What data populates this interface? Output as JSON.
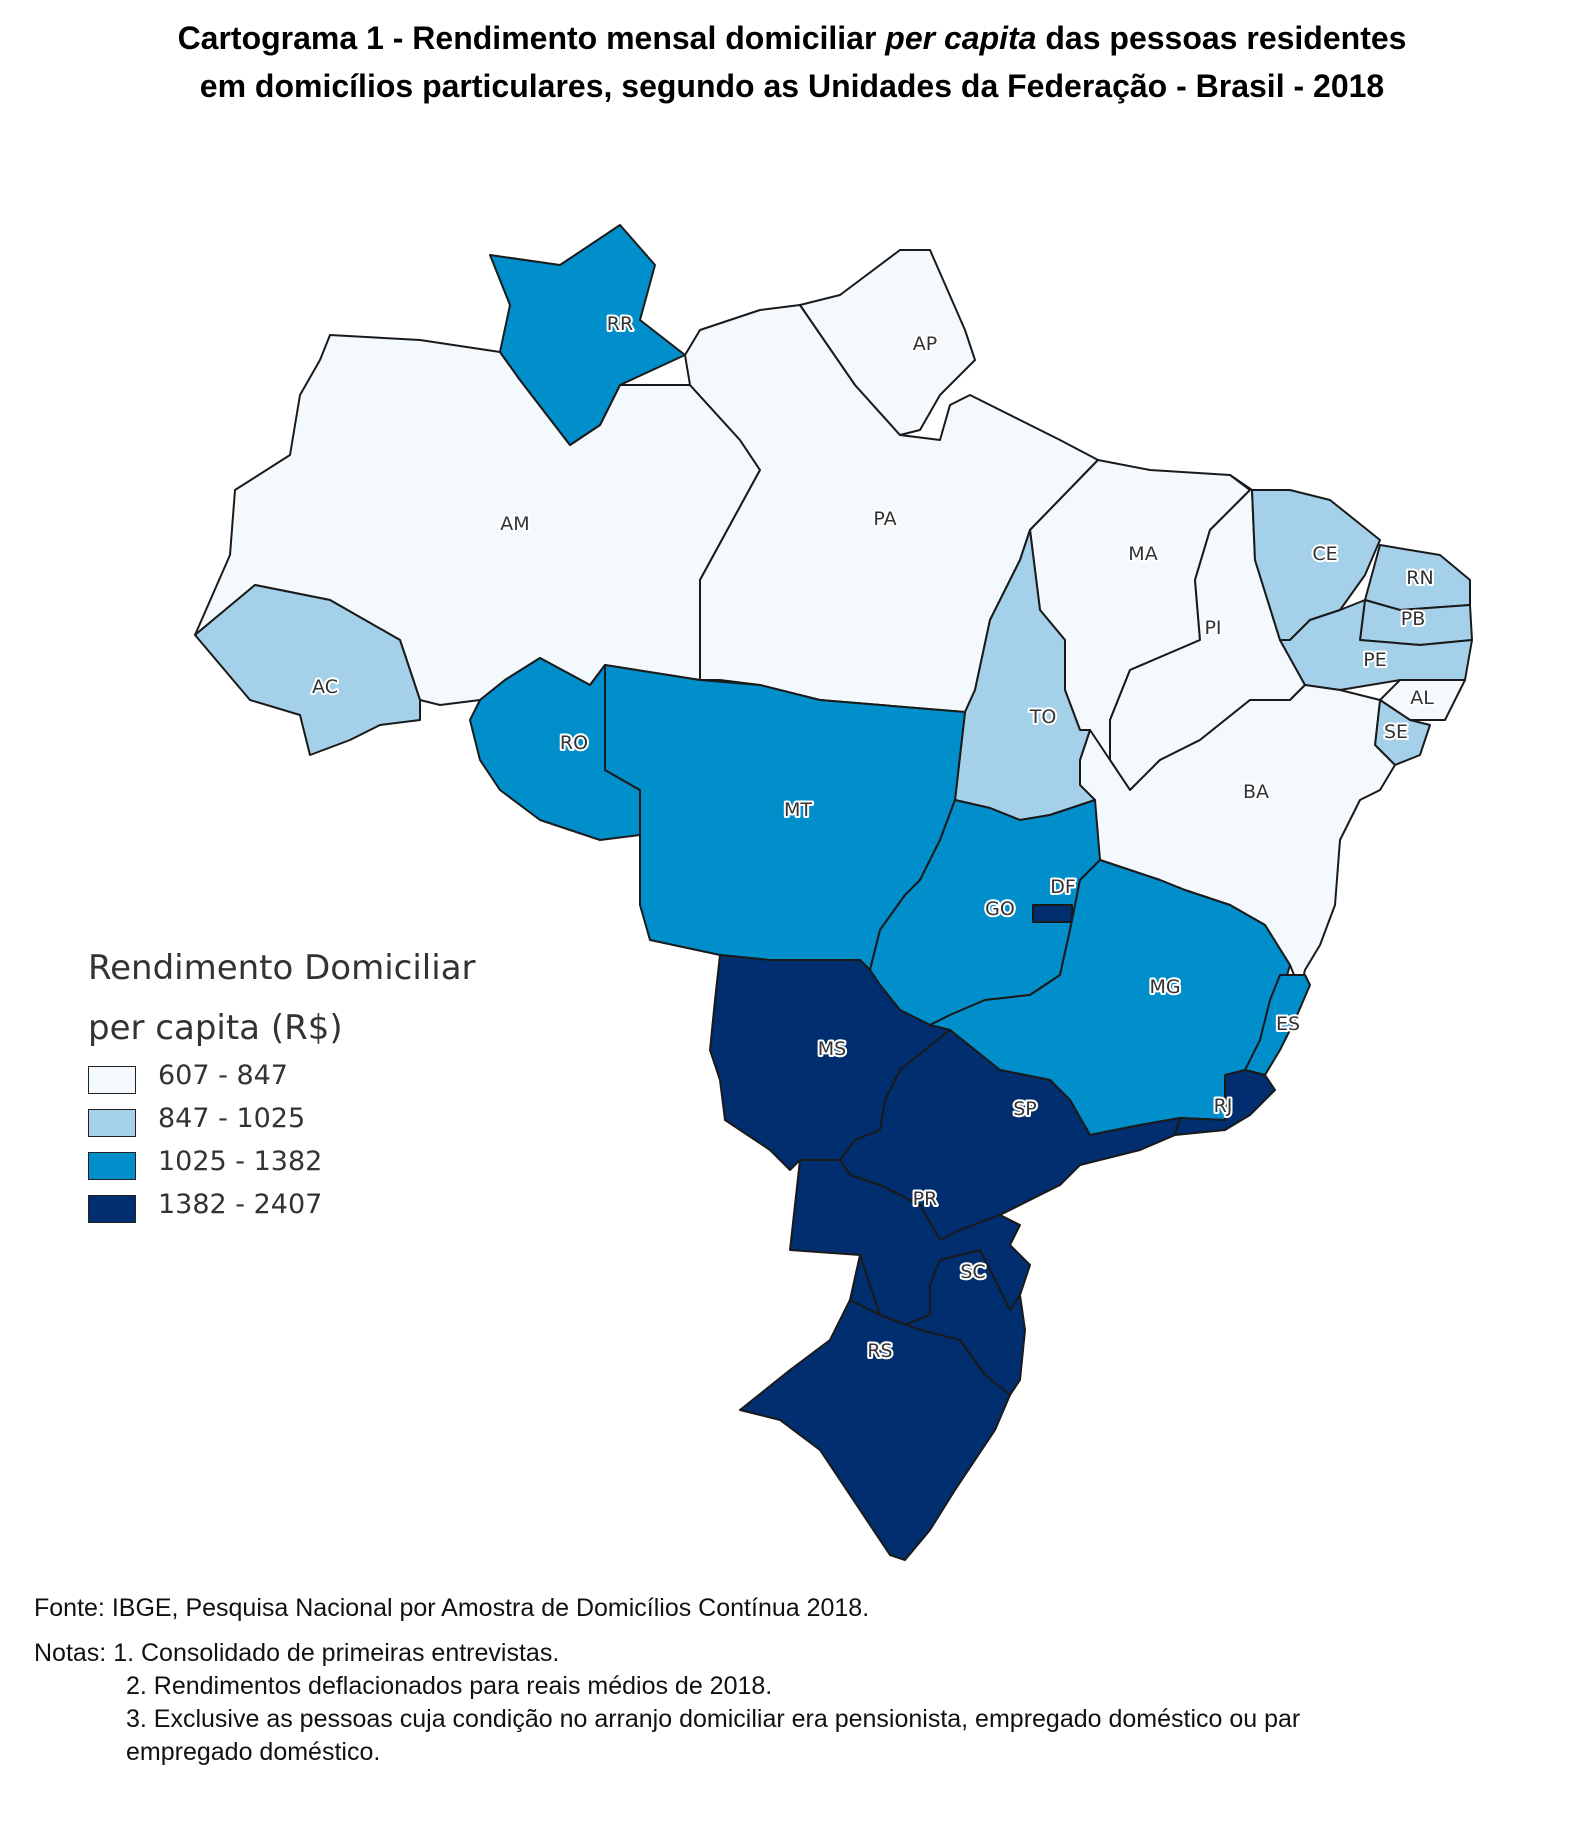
{
  "title": {
    "line1_a": "Cartograma 1 - Rendimento mensal domiciliar ",
    "line1_italic": "per capita",
    "line1_b": " das pessoas residentes",
    "line2": "em domicílios particulares, segundo as Unidades da Federação - Brasil - 2018"
  },
  "legend": {
    "title_line1": "Rendimento Domiciliar",
    "title_line2": "per capita (R$)",
    "classes": [
      {
        "label": "607 - 847",
        "color": "#f4f9fe"
      },
      {
        "label": "847 - 1025",
        "color": "#a4d1e9"
      },
      {
        "label": "1025 - 1382",
        "color": "#008fca"
      },
      {
        "label": "1382 - 2407",
        "color": "#002e6e"
      }
    ]
  },
  "map_data": {
    "type": "choropleth",
    "variable": "Rendimento Domiciliar per capita (R$)",
    "regions": [
      {
        "uf": "RR",
        "class": "1025 - 1382"
      },
      {
        "uf": "AP",
        "class": "607 - 847"
      },
      {
        "uf": "AM",
        "class": "607 - 847"
      },
      {
        "uf": "PA",
        "class": "607 - 847"
      },
      {
        "uf": "MA",
        "class": "607 - 847"
      },
      {
        "uf": "CE",
        "class": "847 - 1025"
      },
      {
        "uf": "RN",
        "class": "847 - 1025"
      },
      {
        "uf": "PB",
        "class": "847 - 1025"
      },
      {
        "uf": "PI",
        "class": "607 - 847"
      },
      {
        "uf": "PE",
        "class": "847 - 1025"
      },
      {
        "uf": "AL",
        "class": "607 - 847"
      },
      {
        "uf": "SE",
        "class": "847 - 1025"
      },
      {
        "uf": "AC",
        "class": "847 - 1025"
      },
      {
        "uf": "RO",
        "class": "1025 - 1382"
      },
      {
        "uf": "TO",
        "class": "847 - 1025"
      },
      {
        "uf": "MT",
        "class": "1025 - 1382"
      },
      {
        "uf": "BA",
        "class": "607 - 847"
      },
      {
        "uf": "GO",
        "class": "1025 - 1382"
      },
      {
        "uf": "DF",
        "class": "1382 - 2407"
      },
      {
        "uf": "MG",
        "class": "1025 - 1382"
      },
      {
        "uf": "ES",
        "class": "1025 - 1382"
      },
      {
        "uf": "MS",
        "class": "1382 - 2407"
      },
      {
        "uf": "SP",
        "class": "1382 - 2407"
      },
      {
        "uf": "RJ",
        "class": "1382 - 2407"
      },
      {
        "uf": "PR",
        "class": "1382 - 2407"
      },
      {
        "uf": "SC",
        "class": "1382 - 2407"
      },
      {
        "uf": "RS",
        "class": "1382 - 2407"
      }
    ]
  },
  "footer": {
    "source": "Fonte: IBGE, Pesquisa Nacional por Amostra de Domicílios Contínua 2018.",
    "notes_prefix": "Notas: ",
    "note1": "1. Consolidado de primeiras entrevistas.",
    "note2": "2. Rendimentos deflacionados para reais médios de 2018.",
    "note3": "3. Exclusive as pessoas cuja condição no arranjo domiciliar era pensionista, empregado doméstico ou par",
    "note3_cont": "empregado doméstico."
  }
}
